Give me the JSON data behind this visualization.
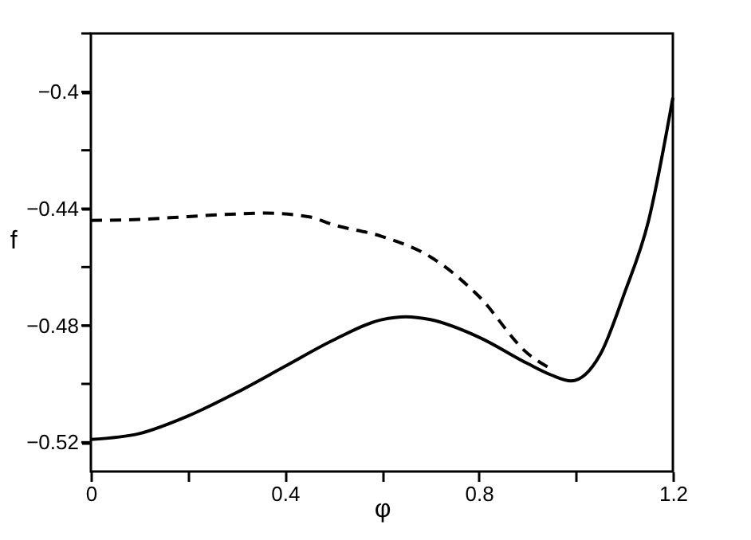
{
  "chart_data": {
    "type": "line",
    "xlabel": "φ",
    "ylabel": "f",
    "xlim": [
      0,
      1.2
    ],
    "ylim": [
      -0.53,
      -0.38
    ],
    "xticks": [
      0,
      {
        "value": 0.2,
        "label": null
      },
      0.4,
      {
        "value": 0.6,
        "label": null
      },
      0.8,
      {
        "value": 1.0,
        "label": null
      },
      1.2
    ],
    "yticks": [
      -0.52,
      {
        "value": -0.5,
        "label": null
      },
      -0.48,
      {
        "value": -0.46,
        "label": null
      },
      -0.44,
      {
        "value": -0.42,
        "label": null
      },
      -0.4,
      {
        "value": -0.38,
        "label": null
      }
    ],
    "grid": false,
    "series": [
      {
        "color": "#000000",
        "line_style": "solid",
        "x": [
          0,
          0.1,
          0.2,
          0.3,
          0.4,
          0.5,
          0.6,
          0.65,
          0.7,
          0.8,
          0.9,
          0.95,
          0.99,
          1.05,
          1.1,
          1.15,
          1.2
        ],
        "values": [
          -0.519,
          -0.517,
          -0.511,
          -0.503,
          -0.494,
          -0.485,
          -0.478,
          -0.477,
          -0.478,
          -0.484,
          -0.493,
          -0.497,
          -0.499,
          -0.49,
          -0.469,
          -0.444,
          -0.402
        ]
      },
      {
        "color": "#000000",
        "line_style": "dashed",
        "x": [
          0,
          0.1,
          0.2,
          0.3,
          0.36,
          0.45,
          0.5,
          0.6,
          0.7,
          0.8,
          0.9,
          0.95
        ],
        "values": [
          -0.444,
          -0.4437,
          -0.4427,
          -0.4418,
          -0.4415,
          -0.4428,
          -0.4455,
          -0.4495,
          -0.4565,
          -0.47,
          -0.4895,
          -0.495
        ]
      }
    ]
  }
}
